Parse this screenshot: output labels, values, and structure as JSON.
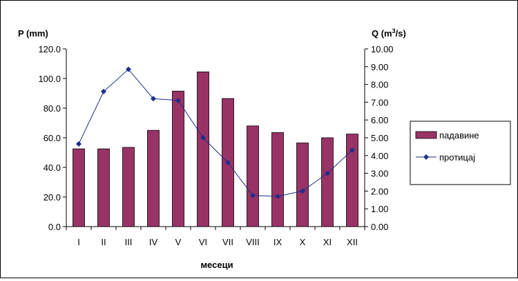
{
  "chart_data": {
    "type": "bar",
    "categories": [
      "I",
      "II",
      "III",
      "IV",
      "V",
      "VI",
      "VII",
      "VIII",
      "IX",
      "X",
      "XI",
      "XII"
    ],
    "xlabel": "месеци",
    "ylabel_left": "P (mm)",
    "ylabel_right_prefix": "Q (m",
    "ylabel_right_sup": "3",
    "ylabel_right_suffix": "/s)",
    "ylim_left": [
      0,
      120
    ],
    "ylim_right": [
      0,
      10
    ],
    "yticks_left": [
      "0.0",
      "20.0",
      "40.0",
      "60.0",
      "80.0",
      "100.0",
      "120.0"
    ],
    "yticks_right": [
      "0.00",
      "1.00",
      "2.00",
      "3.00",
      "4.00",
      "5.00",
      "6.00",
      "7.00",
      "8.00",
      "9.00",
      "10.00"
    ],
    "grid": false,
    "legend_position": "right",
    "series": [
      {
        "name": "падавине",
        "type": "bar",
        "axis": "left",
        "color": "#993366",
        "values": [
          52.5,
          52.5,
          53.5,
          65,
          91.5,
          104.5,
          86.5,
          68,
          63.5,
          56.5,
          60,
          62.5
        ]
      },
      {
        "name": "протицај",
        "type": "line",
        "axis": "right",
        "color": "#1f2f8a",
        "marker": "diamond",
        "values": [
          4.65,
          7.6,
          8.85,
          7.2,
          7.1,
          5.0,
          3.6,
          1.75,
          1.7,
          2.0,
          3.0,
          4.3
        ]
      }
    ]
  }
}
